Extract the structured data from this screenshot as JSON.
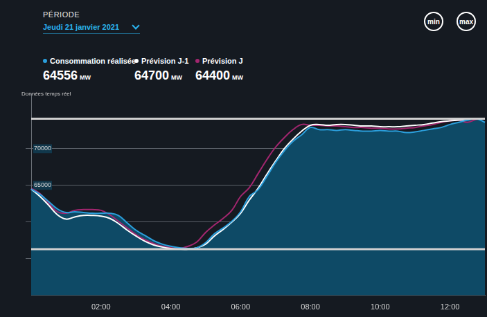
{
  "header": {
    "period_label": "PÉRIODE",
    "period": "Jeudi 21 janvier 2021",
    "subtitle": "Données temps réel",
    "unit": "MW"
  },
  "chart_data": {
    "type": "line",
    "categories": [
      null,
      null,
      null,
      null,
      null,
      null,
      null,
      null,
      "02:00",
      null,
      null,
      null,
      null,
      null,
      null,
      null,
      "04:00",
      null,
      null,
      null,
      null,
      null,
      null,
      null,
      "06:00",
      null,
      null,
      null,
      null,
      null,
      null,
      null,
      "08:00",
      null,
      null,
      null,
      null,
      null,
      null,
      null,
      "10:00",
      null,
      null,
      null,
      null,
      null,
      null,
      null,
      "12:00",
      null,
      null,
      null,
      null
    ],
    "series": [
      {
        "name": "Consommation réalisée",
        "color": "#2b9fdc",
        "type": "area",
        "current_value": 64556,
        "values": [
          64500,
          63800,
          62800,
          61800,
          61300,
          61400,
          61300,
          61200,
          61200,
          61200,
          60900,
          59900,
          58900,
          58200,
          57500,
          57000,
          56700,
          56500,
          56400,
          56500,
          57200,
          58400,
          59200,
          60100,
          61400,
          63500,
          64400,
          66200,
          68100,
          69700,
          71000,
          71900,
          72900,
          72600,
          72600,
          72500,
          72600,
          72500,
          72400,
          72400,
          72500,
          72400,
          72400,
          72200,
          72300,
          72500,
          72700,
          72900,
          73300,
          73600,
          73900,
          74100,
          73600
        ]
      },
      {
        "name": "Prévision J-1",
        "color": "#ffffff",
        "type": "line",
        "current_value": 64700,
        "values": [
          64500,
          63500,
          62300,
          61000,
          60400,
          60700,
          60900,
          60900,
          60800,
          60500,
          59800,
          58900,
          58100,
          57400,
          56900,
          56600,
          56400,
          56300,
          56300,
          56500,
          57000,
          58100,
          59000,
          60000,
          61200,
          63000,
          64600,
          66500,
          68300,
          70000,
          71300,
          72400,
          73200,
          73300,
          73200,
          73300,
          73300,
          73200,
          73100,
          73100,
          73000,
          73000,
          73000,
          73100,
          73200,
          73300,
          73500,
          73700,
          73800,
          73900,
          74000,
          74100,
          74100
        ]
      },
      {
        "name": "Prévision J",
        "color": "#a3266f",
        "type": "line",
        "current_value": 64400,
        "values": [
          64600,
          63900,
          62600,
          61400,
          61200,
          61600,
          61700,
          61700,
          61600,
          61000,
          60100,
          59200,
          58300,
          57600,
          57100,
          56700,
          56500,
          56400,
          56700,
          57300,
          58600,
          59600,
          60500,
          61600,
          63500,
          64700,
          66600,
          68500,
          70200,
          71500,
          72600,
          73300,
          73200,
          73200,
          73100,
          73100,
          73000,
          72900,
          72900,
          72800,
          72800,
          72700,
          72700,
          72800,
          72900,
          73100,
          73300,
          73600,
          73800,
          73900,
          73600,
          74000,
          74100
        ]
      }
    ],
    "reference_lines": [
      {
        "label": "min",
        "value": 56300
      },
      {
        "label": "max",
        "value": 74100
      }
    ],
    "ylim": [
      50000,
      77500
    ],
    "yticks": [
      55000,
      60000,
      65000,
      70000
    ],
    "grid": true,
    "legend": "top-left"
  }
}
